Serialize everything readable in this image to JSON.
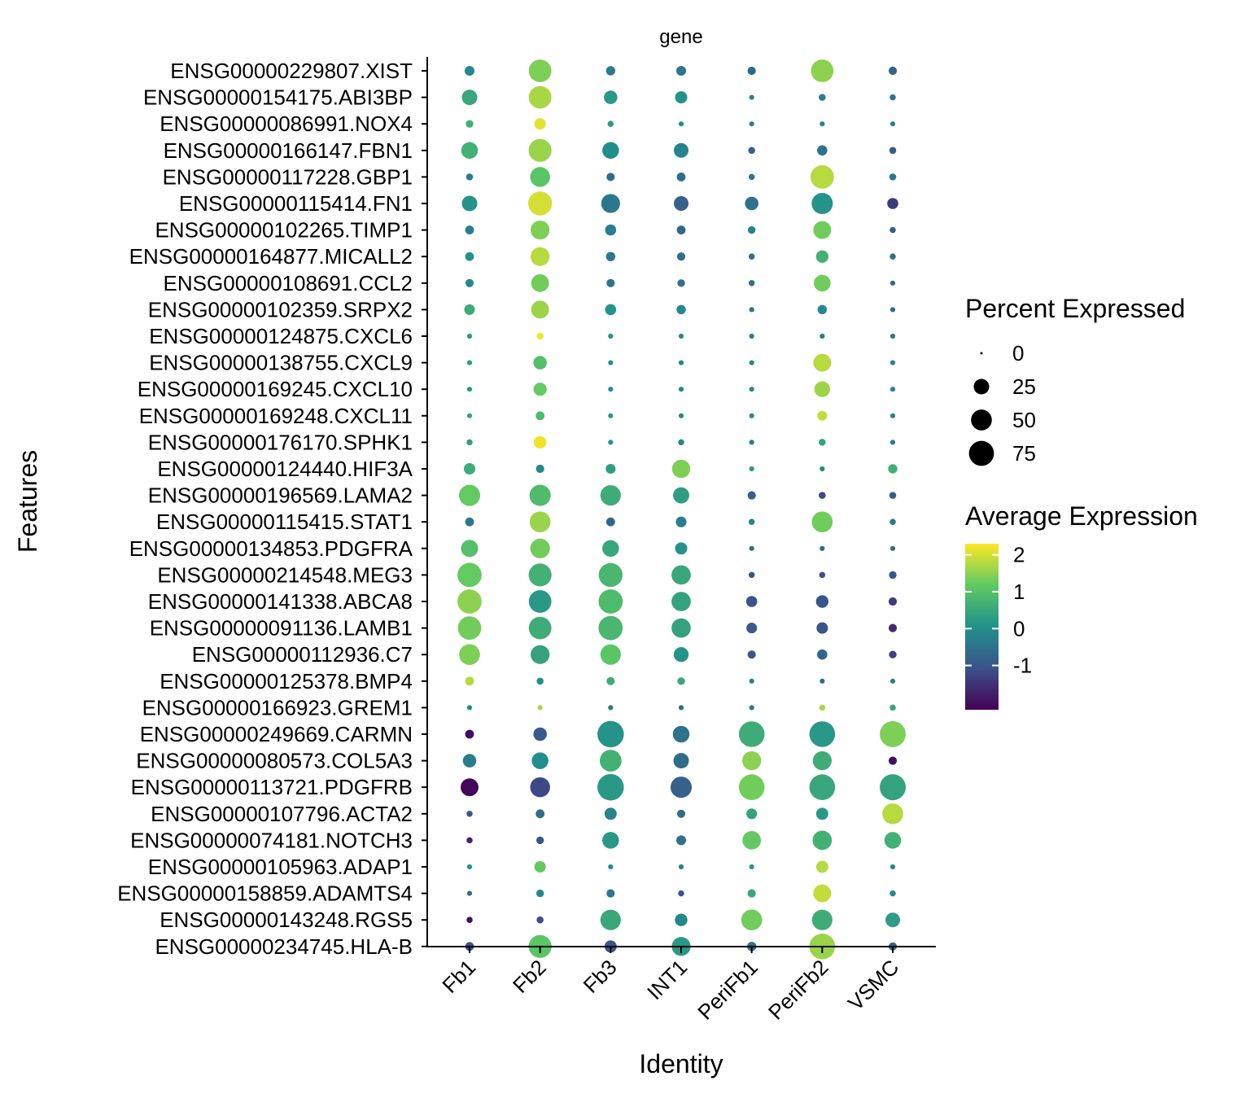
{
  "chart_data": {
    "type": "dotplot",
    "facet_label": "gene",
    "xlabel": "Identity",
    "ylabel": "Features",
    "categories": [
      "Fb1",
      "Fb2",
      "Fb3",
      "INT1",
      "PeriFb1",
      "PeriFb2",
      "VSMC"
    ],
    "features": [
      "ENSG00000229807.XIST",
      "ENSG00000154175.ABI3BP",
      "ENSG00000086991.NOX4",
      "ENSG00000166147.FBN1",
      "ENSG00000117228.GBP1",
      "ENSG00000115414.FN1",
      "ENSG00000102265.TIMP1",
      "ENSG00000164877.MICALL2",
      "ENSG00000108691.CCL2",
      "ENSG00000102359.SRPX2",
      "ENSG00000124875.CXCL6",
      "ENSG00000138755.CXCL9",
      "ENSG00000169245.CXCL10",
      "ENSG00000169248.CXCL11",
      "ENSG00000176170.SPHK1",
      "ENSG00000124440.HIF3A",
      "ENSG00000196569.LAMA2",
      "ENSG00000115415.STAT1",
      "ENSG00000134853.PDGFRA",
      "ENSG00000214548.MEG3",
      "ENSG00000141338.ABCA8",
      "ENSG00000091136.LAMB1",
      "ENSG00000112936.C7",
      "ENSG00000125378.BMP4",
      "ENSG00000166923.GREM1",
      "ENSG00000249669.CARMN",
      "ENSG00000080573.COL5A3",
      "ENSG00000113721.PDGFRB",
      "ENSG00000107796.ACTA2",
      "ENSG00000074181.NOTCH3",
      "ENSG00000105963.ADAP1",
      "ENSG00000158859.ADAMTS4",
      "ENSG00000143248.RGS5",
      "ENSG00000234745.HLA-B"
    ],
    "percent_expressed": [
      [
        8,
        60,
        7,
        8,
        5,
        60,
        5
      ],
      [
        25,
        60,
        18,
        14,
        1,
        3,
        2
      ],
      [
        4,
        12,
        2,
        1,
        1,
        1,
        1
      ],
      [
        30,
        62,
        30,
        22,
        3,
        9,
        3
      ],
      [
        3,
        45,
        5,
        6,
        2,
        65,
        3
      ],
      [
        25,
        68,
        40,
        22,
        18,
        52,
        11
      ],
      [
        6,
        40,
        11,
        6,
        4,
        35,
        2
      ],
      [
        6,
        40,
        7,
        5,
        2,
        15,
        2
      ],
      [
        5,
        35,
        5,
        4,
        2,
        30,
        1
      ],
      [
        10,
        35,
        11,
        7,
        1,
        7,
        1
      ],
      [
        1,
        3,
        1,
        1,
        1,
        1,
        1
      ],
      [
        1,
        18,
        1,
        1,
        1,
        35,
        1
      ],
      [
        1,
        17,
        1,
        1,
        1,
        26,
        1
      ],
      [
        1,
        6,
        1,
        1,
        1,
        8,
        1
      ],
      [
        2,
        15,
        1,
        2,
        1,
        3,
        1
      ],
      [
        12,
        5,
        8,
        37,
        1,
        1,
        7
      ],
      [
        52,
        52,
        48,
        28,
        5,
        3,
        3
      ],
      [
        6,
        50,
        6,
        10,
        2,
        50,
        2
      ],
      [
        32,
        44,
        30,
        14,
        1,
        1,
        1
      ],
      [
        70,
        62,
        68,
        42,
        2,
        2,
        4
      ],
      [
        70,
        60,
        70,
        42,
        11,
        15,
        5
      ],
      [
        65,
        60,
        70,
        42,
        10,
        12,
        5
      ],
      [
        50,
        40,
        48,
        23,
        5,
        9,
        4
      ],
      [
        6,
        3,
        5,
        4,
        1,
        1,
        1
      ],
      [
        1,
        1,
        1,
        1,
        1,
        2,
        2
      ],
      [
        6,
        18,
        85,
        30,
        80,
        80,
        82
      ],
      [
        18,
        30,
        55,
        25,
        40,
        40,
        5
      ],
      [
        35,
        45,
        85,
        52,
        80,
        80,
        82
      ],
      [
        2,
        6,
        14,
        5,
        10,
        14,
        50
      ],
      [
        2,
        4,
        30,
        8,
        38,
        42,
        30
      ],
      [
        1,
        12,
        1,
        1,
        1,
        14,
        1
      ],
      [
        1,
        4,
        5,
        2,
        5,
        35,
        2
      ],
      [
        2,
        3,
        48,
        15,
        50,
        48,
        22
      ],
      [
        6,
        62,
        14,
        40,
        7,
        80,
        5
      ]
    ],
    "average_expression": [
      [
        -0.1,
        1.4,
        -0.3,
        -0.4,
        -0.7,
        1.5,
        -0.8
      ],
      [
        0.5,
        1.7,
        0.2,
        0.1,
        -0.2,
        -0.3,
        -0.5
      ],
      [
        0.7,
        2.1,
        0.3,
        0.0,
        -0.2,
        -0.2,
        -0.2
      ],
      [
        0.7,
        1.6,
        0.0,
        -0.2,
        -0.8,
        -0.5,
        -0.9
      ],
      [
        -0.3,
        1.1,
        -0.6,
        -0.6,
        -0.5,
        1.8,
        -0.4
      ],
      [
        0.1,
        2.0,
        -0.4,
        -0.8,
        -0.5,
        0.1,
        -1.4
      ],
      [
        -0.3,
        1.4,
        -0.3,
        -0.7,
        -0.2,
        1.3,
        -0.9
      ],
      [
        0.1,
        1.8,
        -0.4,
        -0.6,
        -0.6,
        0.7,
        -0.5
      ],
      [
        -0.1,
        1.3,
        -0.5,
        -0.5,
        -0.5,
        1.3,
        -0.7
      ],
      [
        0.6,
        1.6,
        0.1,
        -0.1,
        -0.5,
        -0.1,
        -0.6
      ],
      [
        0.2,
        2.2,
        0.1,
        -0.1,
        -0.3,
        -0.3,
        -0.4
      ],
      [
        0.3,
        1.0,
        0.1,
        -0.1,
        -0.1,
        1.8,
        -0.2
      ],
      [
        0.2,
        1.2,
        0.0,
        -0.1,
        -0.1,
        1.6,
        -0.2
      ],
      [
        0.4,
        0.9,
        0.2,
        -0.1,
        -0.1,
        1.9,
        -0.2
      ],
      [
        0.3,
        2.2,
        0.1,
        -0.1,
        -0.3,
        0.4,
        -0.3
      ],
      [
        0.6,
        -0.1,
        0.3,
        1.4,
        0.2,
        -0.1,
        0.7
      ],
      [
        1.2,
        0.9,
        0.6,
        0.3,
        -0.8,
        -1.2,
        -0.9
      ],
      [
        -0.4,
        1.6,
        -0.7,
        -0.3,
        -0.2,
        1.3,
        -0.4
      ],
      [
        1.0,
        1.3,
        0.5,
        0.1,
        -0.6,
        -0.6,
        -0.6
      ],
      [
        1.2,
        0.7,
        0.8,
        0.5,
        -1.0,
        -1.1,
        -1.0
      ],
      [
        1.5,
        0.2,
        0.9,
        0.4,
        -1.0,
        -1.0,
        -1.4
      ],
      [
        1.3,
        0.6,
        0.8,
        0.4,
        -0.9,
        -1.0,
        -1.6
      ],
      [
        1.4,
        0.4,
        1.1,
        0.1,
        -1.0,
        -0.7,
        -1.3
      ],
      [
        1.8,
        0.0,
        0.6,
        0.5,
        -0.3,
        -0.6,
        -0.3
      ],
      [
        0.0,
        1.7,
        -0.4,
        -0.6,
        -0.3,
        1.7,
        0.5
      ],
      [
        -2.0,
        -0.9,
        0.1,
        -0.5,
        0.6,
        0.2,
        1.4
      ],
      [
        -0.3,
        0.0,
        0.7,
        -0.6,
        1.5,
        0.6,
        -2.0
      ],
      [
        -2.1,
        -1.2,
        0.2,
        -0.8,
        1.3,
        0.5,
        0.4
      ],
      [
        -1.0,
        -0.6,
        -0.2,
        -0.6,
        0.4,
        0.2,
        1.8
      ],
      [
        -1.7,
        -1.0,
        0.2,
        -0.5,
        1.2,
        0.7,
        0.7
      ],
      [
        0.1,
        1.2,
        0.0,
        -0.2,
        0.2,
        1.8,
        -0.1
      ],
      [
        -0.6,
        -0.1,
        -0.4,
        -1.0,
        0.5,
        1.9,
        0.0
      ],
      [
        -2.0,
        -1.1,
        0.5,
        -0.1,
        1.3,
        0.6,
        0.3
      ],
      [
        -1.0,
        1.1,
        -1.0,
        0.2,
        -0.5,
        1.6,
        -0.7
      ]
    ],
    "legend_size": {
      "title": "Percent Expressed",
      "values": [
        0,
        25,
        50,
        75
      ],
      "labels": [
        "0",
        "25",
        "50",
        "75"
      ]
    },
    "legend_color": {
      "title": "Average Expression",
      "colormap": "viridis",
      "range": [
        -2.2,
        2.3
      ],
      "ticks": [
        2,
        1,
        0,
        -1
      ],
      "tick_labels": [
        "2",
        "1",
        "0",
        "-1"
      ],
      "colors": [
        "#440154",
        "#3b528b",
        "#21918c",
        "#5ec962",
        "#fde725"
      ]
    },
    "legend_placement": "right",
    "grid": false
  }
}
